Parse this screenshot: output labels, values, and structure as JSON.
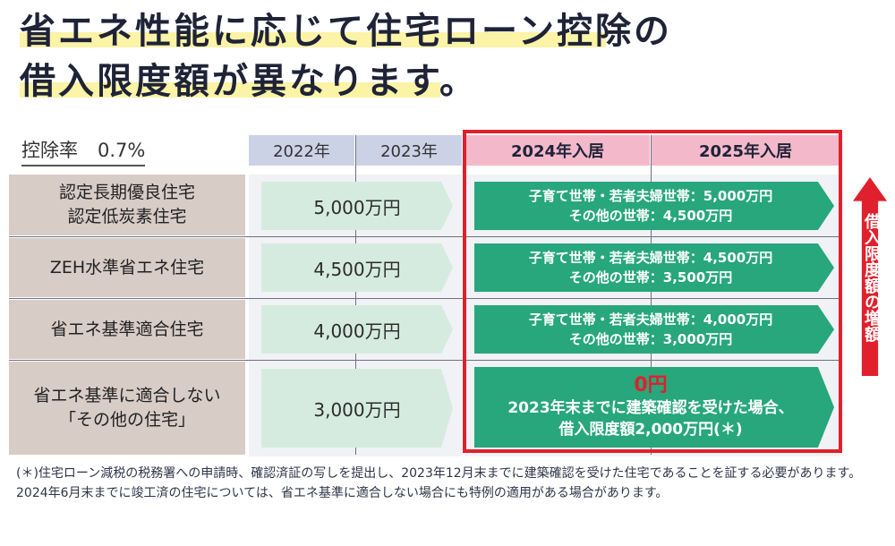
{
  "title": {
    "line1": "省エネ性能に応じて住宅ローン控除の",
    "line2": "借入限度額が異なります。"
  },
  "rate": {
    "label": "控除率",
    "value": "0.7%"
  },
  "headers": {
    "y2022": "2022年",
    "y2023": "2023年",
    "y2024": "2024年入居",
    "y2025": "2025年入居"
  },
  "rows": [
    {
      "label_line1": "認定長期優良住宅",
      "label_line2": "認定低炭素住宅",
      "old_limit": "5,000万円",
      "new_line1": "子育て世帯・若者夫婦世帯：5,000万円",
      "new_line2": "その他の世帯：4,500万円"
    },
    {
      "label_line1": "ZEH水準省エネ住宅",
      "old_limit": "4,500万円",
      "new_line1": "子育て世帯・若者夫婦世帯：4,500万円",
      "new_line2": "その他の世帯：3,500万円"
    },
    {
      "label_line1": "省エネ基準適合住宅",
      "old_limit": "4,000万円",
      "new_line1": "子育て世帯・若者夫婦世帯：4,000万円",
      "new_line2": "その他の世帯：3,000万円"
    },
    {
      "label_line1": "省エネ基準に適合しない",
      "label_line2": "「その他の住宅」",
      "old_limit": "3,000万円",
      "new_zero": "0円",
      "new_line1": "2023年末までに建築確認を受けた場合、",
      "new_line2": "借入限度額2,000万円(＊)"
    }
  ],
  "side_label": "借入限度額の増額",
  "footnote": "(＊)住宅ローン減税の税務署への申請時、確認済証の写しを提出し、2023年12月末までに建築確認を受けた住宅であることを証する必要があります。2024年6月末までに竣工済の住宅については、省エネ基準に適合しない場合にも特例の適用がある場合があります。",
  "colors": {
    "highlight": "#fbf3a6",
    "accent_red": "#e0202c",
    "green": "#27a77b",
    "pale_green": "#d6ebe0",
    "header_blue": "#ccd2e6",
    "header_pink": "#f3b9cb",
    "label_bg": "#d8ccc7"
  }
}
